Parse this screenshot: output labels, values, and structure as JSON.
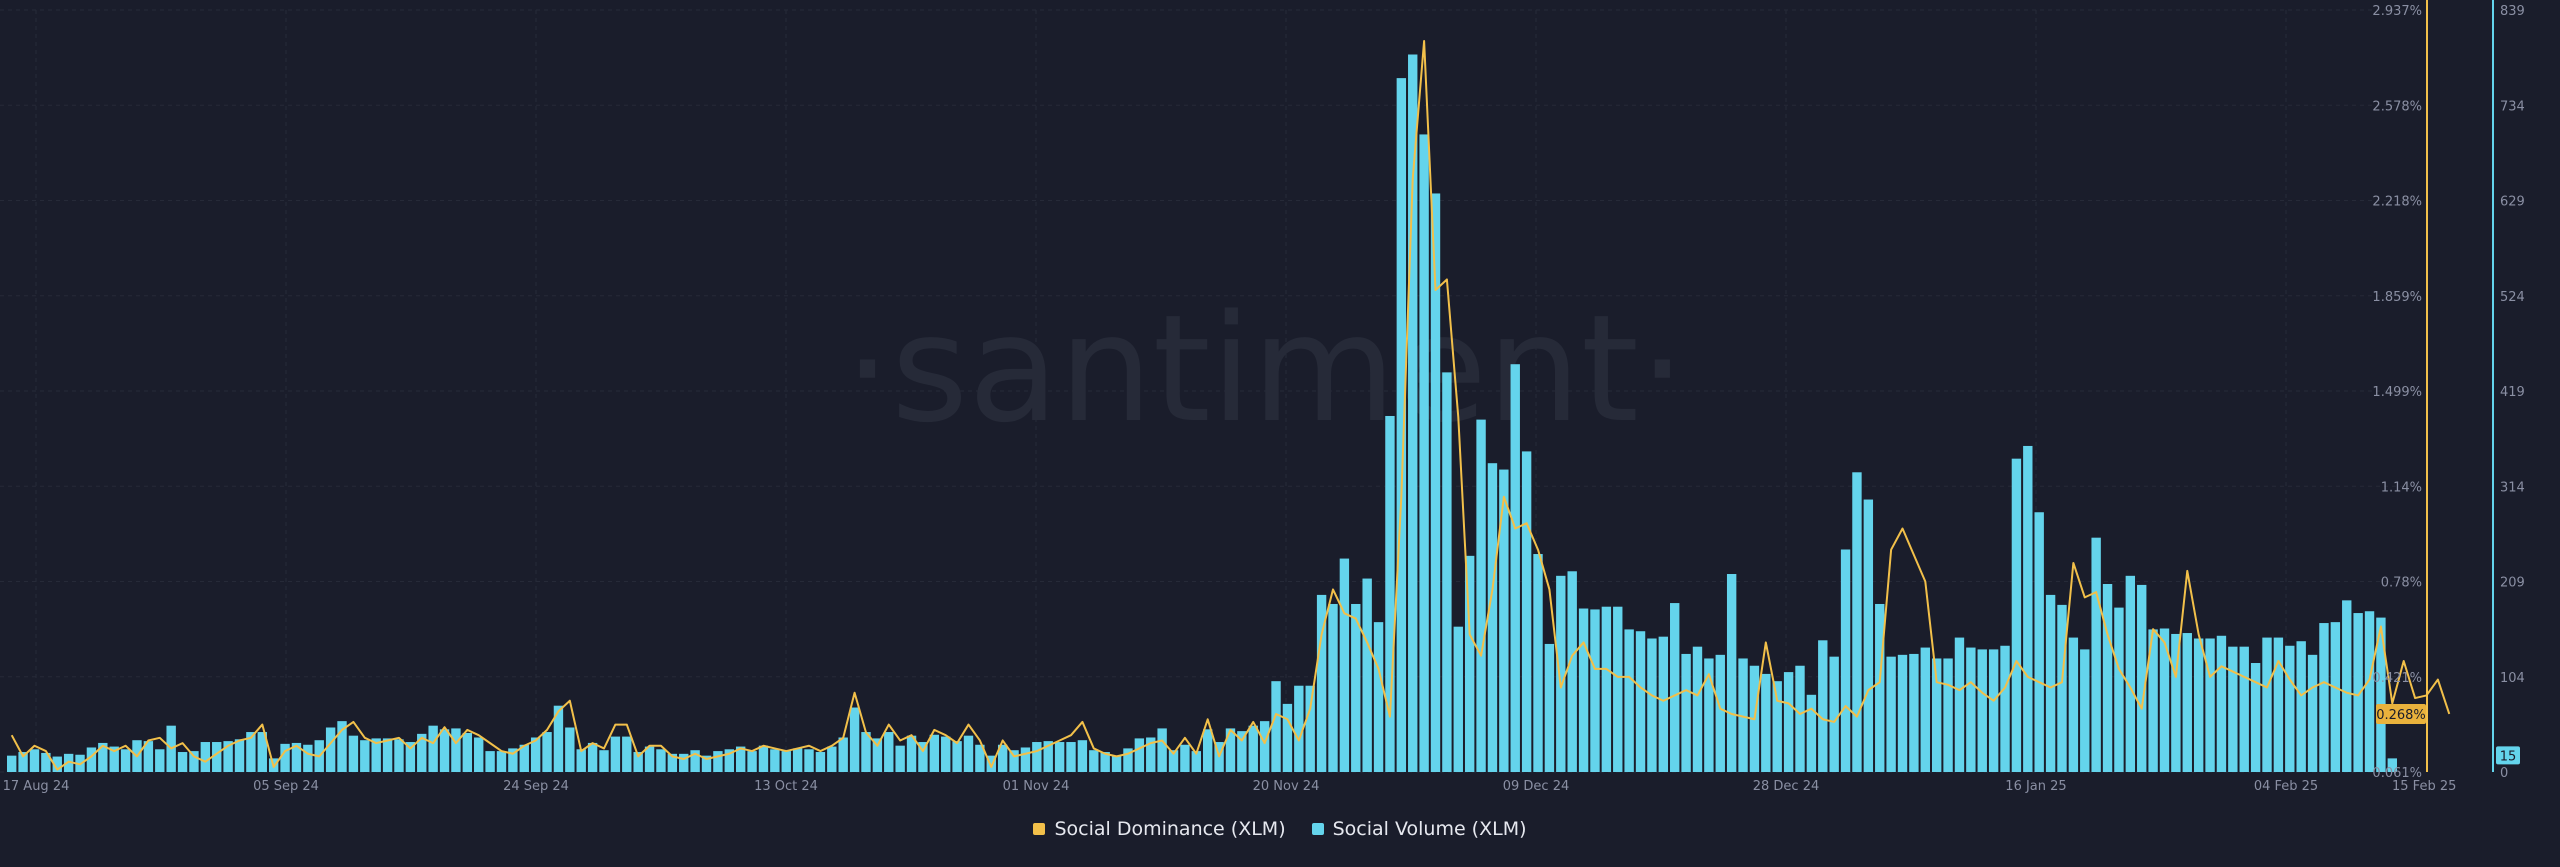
{
  "chart_data": {
    "type": "bar",
    "watermark": "·santiment·",
    "x_tick_labels": [
      "17 Aug 24",
      "05 Sep 24",
      "24 Sep 24",
      "13 Oct 24",
      "01 Nov 24",
      "20 Nov 24",
      "09 Dec 24",
      "28 Dec 24",
      "16 Jan 25",
      "04 Feb 25",
      "15 Feb 25"
    ],
    "dominance_axis": {
      "ticks": [
        "2.937%",
        "2.578%",
        "2.218%",
        "1.859%",
        "1.499%",
        "1.14%",
        "0.78%",
        "0.421%",
        "0.061%"
      ],
      "ylim": [
        0.061,
        2.937
      ],
      "current_value": "0.268%",
      "color": "#f2c04a"
    },
    "volume_axis": {
      "ticks": [
        "839",
        "734",
        "629",
        "524",
        "419",
        "314",
        "209",
        "104",
        "0"
      ],
      "ylim": [
        0,
        839
      ],
      "current_value": "15",
      "color": "#64d4ec"
    },
    "series": [
      {
        "name": "Social Dominance (XLM)",
        "type": "line",
        "color": "#f2c04a",
        "values": [
          0.2,
          0.12,
          0.16,
          0.14,
          0.07,
          0.1,
          0.09,
          0.12,
          0.16,
          0.14,
          0.16,
          0.12,
          0.18,
          0.19,
          0.15,
          0.17,
          0.12,
          0.1,
          0.13,
          0.16,
          0.18,
          0.19,
          0.24,
          0.08,
          0.14,
          0.16,
          0.13,
          0.12,
          0.17,
          0.22,
          0.25,
          0.19,
          0.17,
          0.18,
          0.19,
          0.15,
          0.19,
          0.17,
          0.23,
          0.17,
          0.22,
          0.2,
          0.17,
          0.14,
          0.13,
          0.16,
          0.18,
          0.22,
          0.29,
          0.33,
          0.14,
          0.17,
          0.15,
          0.24,
          0.24,
          0.12,
          0.16,
          0.16,
          0.12,
          0.11,
          0.13,
          0.11,
          0.12,
          0.13,
          0.15,
          0.14,
          0.16,
          0.15,
          0.14,
          0.15,
          0.16,
          0.14,
          0.16,
          0.19,
          0.36,
          0.21,
          0.16,
          0.24,
          0.18,
          0.2,
          0.14,
          0.22,
          0.2,
          0.17,
          0.24,
          0.18,
          0.08,
          0.18,
          0.12,
          0.13,
          0.14,
          0.16,
          0.18,
          0.2,
          0.25,
          0.15,
          0.13,
          0.12,
          0.13,
          0.15,
          0.17,
          0.18,
          0.13,
          0.19,
          0.13,
          0.26,
          0.12,
          0.22,
          0.18,
          0.25,
          0.17,
          0.28,
          0.26,
          0.18,
          0.3,
          0.58,
          0.75,
          0.66,
          0.64,
          0.55,
          0.45,
          0.27,
          1.1,
          2.3,
          2.82,
          1.88,
          1.92,
          1.4,
          0.58,
          0.5,
          0.75,
          1.1,
          0.98,
          1.0,
          0.9,
          0.75,
          0.38,
          0.5,
          0.55,
          0.45,
          0.45,
          0.42,
          0.42,
          0.38,
          0.35,
          0.33,
          0.35,
          0.37,
          0.35,
          0.43,
          0.3,
          0.28,
          0.27,
          0.26,
          0.55,
          0.33,
          0.32,
          0.28,
          0.3,
          0.26,
          0.25,
          0.31,
          0.27,
          0.37,
          0.4,
          0.9,
          0.98,
          0.88,
          0.78,
          0.4,
          0.39,
          0.37,
          0.4,
          0.36,
          0.33,
          0.38,
          0.48,
          0.42,
          0.4,
          0.38,
          0.4,
          0.85,
          0.72,
          0.74,
          0.58,
          0.45,
          0.38,
          0.3,
          0.6,
          0.55,
          0.42,
          0.82,
          0.58,
          0.42,
          0.46,
          0.44,
          0.42,
          0.4,
          0.38,
          0.48,
          0.41,
          0.35,
          0.38,
          0.4,
          0.38,
          0.36,
          0.35,
          0.41,
          0.61,
          0.32,
          0.48,
          0.34,
          0.35,
          0.41,
          0.28
        ]
      },
      {
        "name": "Social Volume (XLM)",
        "type": "bar",
        "color": "#64d4ec",
        "values": [
          18,
          22,
          25,
          21,
          17,
          20,
          19,
          27,
          32,
          28,
          25,
          35,
          34,
          25,
          51,
          22,
          23,
          33,
          33,
          34,
          36,
          44,
          44,
          15,
          31,
          32,
          30,
          35,
          49,
          56,
          40,
          35,
          37,
          37,
          36,
          33,
          42,
          51,
          47,
          48,
          43,
          38,
          23,
          23,
          26,
          30,
          38,
          44,
          73,
          49,
          25,
          32,
          24,
          39,
          39,
          22,
          28,
          25,
          20,
          20,
          24,
          18,
          23,
          25,
          28,
          23,
          29,
          25,
          23,
          26,
          25,
          22,
          28,
          38,
          71,
          44,
          37,
          44,
          29,
          40,
          33,
          41,
          39,
          34,
          40,
          30,
          18,
          30,
          24,
          27,
          33,
          34,
          33,
          33,
          35,
          24,
          22,
          18,
          26,
          37,
          38,
          48,
          24,
          30,
          23,
          47,
          33,
          48,
          45,
          51,
          56,
          100,
          75,
          95,
          95,
          195,
          185,
          235,
          185,
          213,
          165,
          392,
          764,
          790,
          702,
          637,
          440,
          160,
          238,
          388,
          340,
          333,
          449,
          353,
          240,
          141,
          216,
          221,
          180,
          179,
          182,
          182,
          157,
          155,
          147,
          149,
          186,
          130,
          138,
          125,
          129,
          218,
          125,
          117,
          108,
          100,
          110,
          117,
          85,
          145,
          127,
          245,
          330,
          300,
          185,
          127,
          129,
          130,
          137,
          125,
          125,
          148,
          137,
          135,
          135,
          139,
          345,
          359,
          286,
          195,
          184,
          148,
          135,
          258,
          207,
          181,
          216,
          206,
          157,
          158,
          152,
          153,
          147,
          147,
          150,
          138,
          138,
          120,
          148,
          148,
          139,
          144,
          129,
          164,
          165,
          189,
          175,
          177,
          170,
          15
        ]
      }
    ]
  }
}
